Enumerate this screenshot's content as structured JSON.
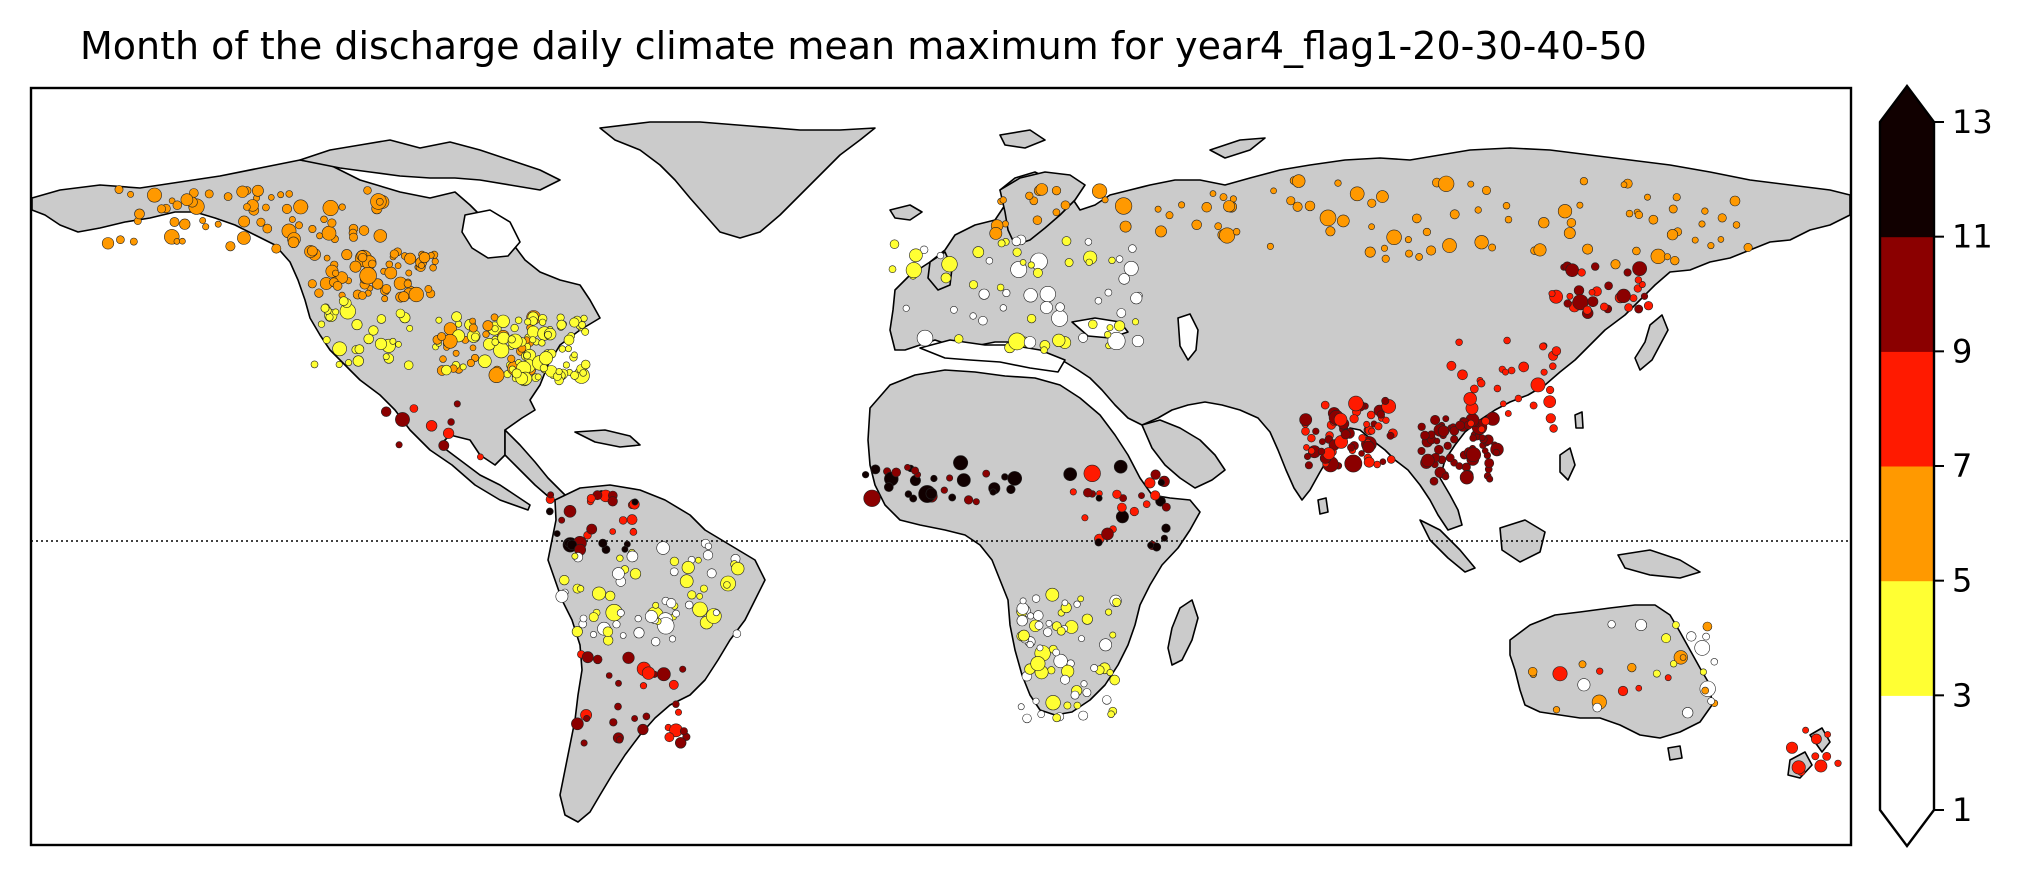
{
  "title": "Month of the discharge daily climate mean maximum for year4_flag1-20-30-40-50",
  "map": {
    "land_color": "#cbcbcb",
    "ocean_color": "#ffffff",
    "equator_line": "dotted"
  },
  "colorbar": {
    "ticks": [
      "1",
      "3",
      "5",
      "7",
      "9",
      "11",
      "13"
    ],
    "bins": [
      {
        "from": 1,
        "to": 3,
        "color": "#ffffff"
      },
      {
        "from": 3,
        "to": 5,
        "color": "#ffff33"
      },
      {
        "from": 5,
        "to": 7,
        "color": "#ff9900"
      },
      {
        "from": 7,
        "to": 9,
        "color": "#ff1a00"
      },
      {
        "from": 9,
        "to": 11,
        "color": "#8b0000"
      },
      {
        "from": 11,
        "to": 13,
        "color": "#110000"
      }
    ],
    "extend": "both"
  },
  "chart_data": {
    "type": "scatter",
    "title": "Month of the discharge daily climate mean maximum for year4_flag1-20-30-40-50",
    "projection": "PlateCarree",
    "lon_range": [
      -180,
      180
    ],
    "lat_range": [
      -60,
      90
    ],
    "colorbar_range": [
      1,
      13
    ],
    "point_clusters": [
      {
        "region": "Alaska / NW Canada",
        "lon": [
          -165,
          -110
        ],
        "lat": [
          58,
          70
        ],
        "month_band": "5-7",
        "density": "high"
      },
      {
        "region": "Western Canada",
        "lon": [
          -125,
          -100
        ],
        "lat": [
          48,
          58
        ],
        "month_band": "5-7",
        "density": "high"
      },
      {
        "region": "US Midwest / Central",
        "lon": [
          -100,
          -80
        ],
        "lat": [
          33,
          45
        ],
        "month_band": "3-7",
        "density": "high"
      },
      {
        "region": "US East",
        "lon": [
          -85,
          -70
        ],
        "lat": [
          32,
          45
        ],
        "month_band": "3-5",
        "density": "high"
      },
      {
        "region": "US West",
        "lon": [
          -124,
          -105
        ],
        "lat": [
          35,
          48
        ],
        "month_band": "3-5",
        "density": "medium"
      },
      {
        "region": "Mexico",
        "lon": [
          -110,
          -90
        ],
        "lat": [
          16,
          28
        ],
        "month_band": "7-11",
        "density": "low"
      },
      {
        "region": "Northern South America",
        "lon": [
          -78,
          -60
        ],
        "lat": [
          -2,
          10
        ],
        "month_band": "7-13",
        "density": "medium"
      },
      {
        "region": "Amazon / Brazil",
        "lon": [
          -75,
          -40
        ],
        "lat": [
          -20,
          0
        ],
        "month_band": "1-5",
        "density": "high"
      },
      {
        "region": "Southern South America",
        "lon": [
          -72,
          -50
        ],
        "lat": [
          -40,
          -22
        ],
        "month_band": "7-11",
        "density": "medium"
      },
      {
        "region": "Europe",
        "lon": [
          -10,
          40
        ],
        "lat": [
          38,
          60
        ],
        "month_band": "1-5",
        "density": "high"
      },
      {
        "region": "Scandinavia / N Russia",
        "lon": [
          10,
          60
        ],
        "lat": [
          60,
          70
        ],
        "month_band": "5-7",
        "density": "medium"
      },
      {
        "region": "Siberia",
        "lon": [
          60,
          160
        ],
        "lat": [
          55,
          72
        ],
        "month_band": "5-7",
        "density": "high"
      },
      {
        "region": "Amur basin",
        "lon": [
          120,
          140
        ],
        "lat": [
          45,
          55
        ],
        "month_band": "7-11",
        "density": "medium"
      },
      {
        "region": "West Africa / Sahel",
        "lon": [
          -15,
          15
        ],
        "lat": [
          8,
          16
        ],
        "month_band": "9-13",
        "density": "medium"
      },
      {
        "region": "Nile / East Africa",
        "lon": [
          25,
          45
        ],
        "lat": [
          -2,
          15
        ],
        "month_band": "7-13",
        "density": "medium"
      },
      {
        "region": "Southern Africa",
        "lon": [
          15,
          35
        ],
        "lat": [
          -35,
          -10
        ],
        "month_band": "1-5",
        "density": "high"
      },
      {
        "region": "India",
        "lon": [
          72,
          90
        ],
        "lat": [
          15,
          28
        ],
        "month_band": "7-11",
        "density": "high"
      },
      {
        "region": "SE Asia",
        "lon": [
          95,
          110
        ],
        "lat": [
          12,
          25
        ],
        "month_band": "9-11",
        "density": "high"
      },
      {
        "region": "China",
        "lon": [
          100,
          122
        ],
        "lat": [
          22,
          40
        ],
        "month_band": "7-9",
        "density": "medium"
      },
      {
        "region": "Australia",
        "lon": [
          115,
          153
        ],
        "lat": [
          -38,
          -15
        ],
        "month_band": "1-9",
        "density": "medium"
      },
      {
        "region": "New Zealand",
        "lon": [
          168,
          178
        ],
        "lat": [
          -46,
          -36
        ],
        "month_band": "7-9",
        "density": "low"
      }
    ]
  }
}
